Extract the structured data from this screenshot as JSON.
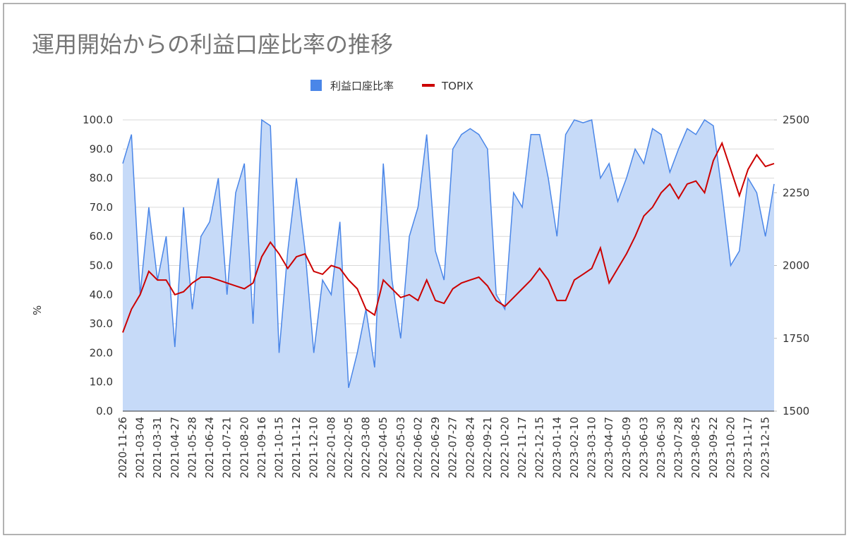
{
  "chart_data": {
    "type": "area_line",
    "title": "運用開始からの利益口座比率の推移",
    "y_label": "%",
    "categories": [
      "2020-11-26",
      null,
      "2021-03-04",
      null,
      "2021-03-31",
      null,
      "2021-04-27",
      null,
      "2021-05-28",
      null,
      "2021-06-24",
      null,
      "2021-07-21",
      null,
      "2021-08-20",
      null,
      "2021-09-16",
      null,
      "2021-10-15",
      null,
      "2021-11-12",
      null,
      "2021-12-10",
      null,
      "2022-01-08",
      null,
      "2022-02-05",
      null,
      "2022-03-08",
      null,
      "2022-04-05",
      null,
      "2022-05-03",
      null,
      "2022-06-02",
      null,
      "2022-06-29",
      null,
      "2022-07-27",
      null,
      "2022-08-24",
      null,
      "2022-09-21",
      null,
      "2022-10-20",
      null,
      "2022-11-17",
      null,
      "2022-12-15",
      null,
      "2023-01-14",
      null,
      "2023-02-10",
      null,
      "2023-03-10",
      null,
      "2023-04-07",
      null,
      "2023-05-09",
      null,
      "2023-06-03",
      null,
      "2023-06-30",
      null,
      "2023-07-28",
      null,
      "2023-08-25",
      null,
      "2023-09-22",
      null,
      "2023-10-20",
      null,
      "2023-11-17",
      null,
      "2023-12-15",
      null
    ],
    "series": [
      {
        "name": "利益口座比率",
        "color": "#4a86e8",
        "fill": "#c6daf8",
        "axis": "y",
        "values": [
          85,
          95,
          40,
          70,
          45,
          60,
          22,
          70,
          35,
          60,
          65,
          80,
          40,
          75,
          85,
          30,
          100,
          98,
          20,
          55,
          80,
          55,
          20,
          45,
          40,
          65,
          8,
          20,
          35,
          15,
          85,
          45,
          25,
          60,
          70,
          95,
          55,
          45,
          90,
          95,
          97,
          95,
          90,
          40,
          35,
          75,
          70,
          95,
          95,
          80,
          60,
          95,
          100,
          99,
          100,
          80,
          85,
          72,
          80,
          90,
          85,
          97,
          95,
          82,
          90,
          97,
          95,
          100,
          98,
          75,
          50,
          55,
          80,
          75,
          60,
          78
        ]
      },
      {
        "name": "TOPIX",
        "color": "#cc0000",
        "axis": "y2",
        "values": [
          1770,
          1850,
          1900,
          1980,
          1950,
          1950,
          1900,
          1910,
          1940,
          1960,
          1960,
          1950,
          1940,
          1930,
          1920,
          1940,
          2030,
          2080,
          2040,
          1990,
          2030,
          2040,
          1980,
          1970,
          2000,
          1990,
          1950,
          1920,
          1850,
          1830,
          1950,
          1920,
          1890,
          1900,
          1880,
          1950,
          1880,
          1870,
          1920,
          1940,
          1950,
          1960,
          1930,
          1880,
          1860,
          1890,
          1920,
          1950,
          1990,
          1950,
          1880,
          1880,
          1950,
          1970,
          1990,
          2060,
          1940,
          1990,
          2040,
          2100,
          2170,
          2200,
          2250,
          2280,
          2230,
          2280,
          2290,
          2250,
          2360,
          2420,
          2330,
          2240,
          2330,
          2380,
          2340,
          2350
        ]
      }
    ],
    "ylim": [
      0,
      100
    ],
    "yticks": [
      {
        "value": 0,
        "label": "0.0"
      },
      {
        "value": 10,
        "label": "10.0"
      },
      {
        "value": 20,
        "label": "20.0"
      },
      {
        "value": 30,
        "label": "30.0"
      },
      {
        "value": 40,
        "label": "40.0"
      },
      {
        "value": 50,
        "label": "50.0"
      },
      {
        "value": 60,
        "label": "60.0"
      },
      {
        "value": 70,
        "label": "70.0"
      },
      {
        "value": 80,
        "label": "80.0"
      },
      {
        "value": 90,
        "label": "90.0"
      },
      {
        "value": 100,
        "label": "100.0"
      }
    ],
    "y2lim": [
      1500,
      2500
    ],
    "y2ticks": [
      1500,
      1750,
      2000,
      2250,
      2500
    ],
    "grid": true,
    "legend": "top"
  }
}
